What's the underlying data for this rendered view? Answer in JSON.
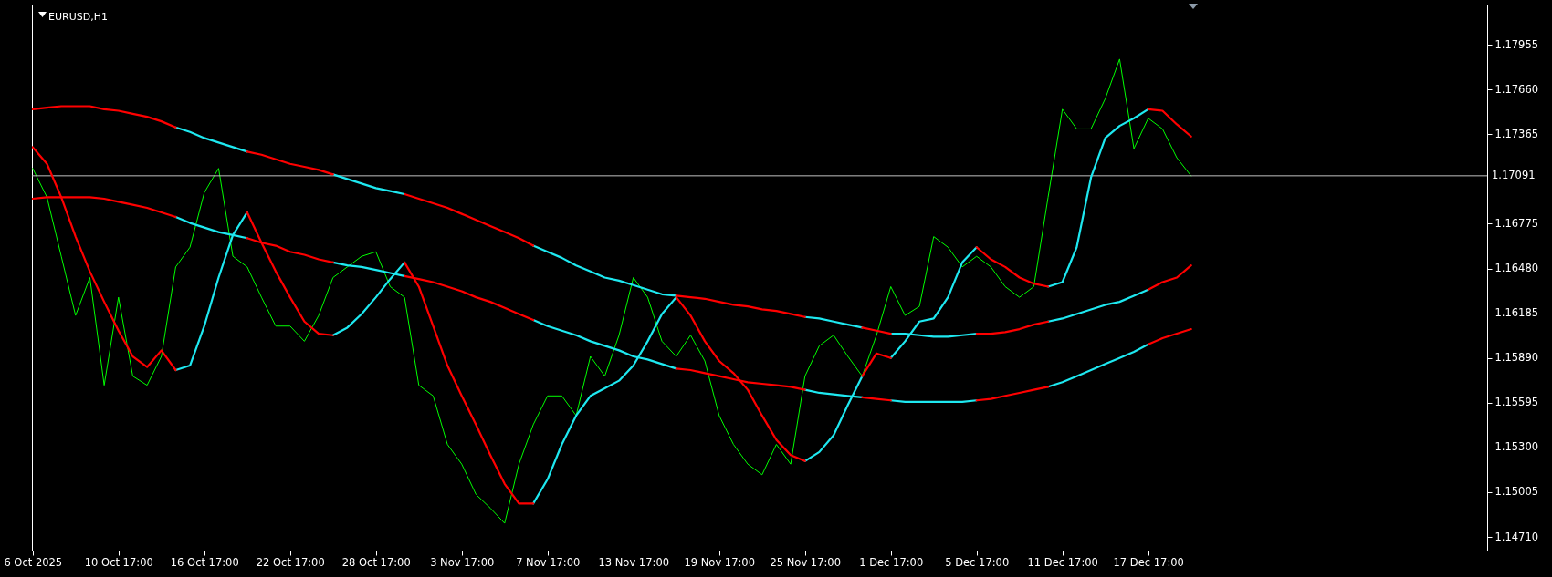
{
  "chart_data": {
    "type": "line",
    "title": "EURUSD,H1",
    "categories": [
      "6 Oct 2025",
      null,
      null,
      null,
      null,
      null,
      "10 Oct 17:00",
      null,
      null,
      null,
      null,
      null,
      "16 Oct 17:00",
      null,
      null,
      null,
      null,
      null,
      "22 Oct 17:00",
      null,
      null,
      null,
      null,
      null,
      "28 Oct 17:00",
      null,
      null,
      null,
      null,
      null,
      "3 Nov 17:00",
      null,
      null,
      null,
      null,
      null,
      "7 Nov 17:00",
      null,
      null,
      null,
      null,
      null,
      "13 Nov 17:00",
      null,
      null,
      null,
      null,
      null,
      "19 Nov 17:00",
      null,
      null,
      null,
      null,
      null,
      "25 Nov 17:00",
      null,
      null,
      null,
      null,
      null,
      "1 Dec 17:00",
      null,
      null,
      null,
      null,
      null,
      "5 Dec 17:00",
      null,
      null,
      null,
      null,
      null,
      "11 Dec 17:00",
      null,
      null,
      null,
      null,
      null,
      "17 Dec 17:00",
      null,
      null,
      null,
      null,
      null,
      null,
      null,
      null,
      null,
      null,
      null,
      null,
      null,
      null,
      null,
      null,
      null,
      null,
      null,
      null,
      null,
      null,
      null,
      null
    ],
    "ylim": [
      1.1462,
      1.1822
    ],
    "yticks": [
      {
        "value": 1.1471,
        "label": "1.14710"
      },
      {
        "value": 1.15005,
        "label": "1.15005"
      },
      {
        "value": 1.153,
        "label": "1.15300"
      },
      {
        "value": 1.15595,
        "label": "1.15595"
      },
      {
        "value": 1.1589,
        "label": "1.15890"
      },
      {
        "value": 1.16185,
        "label": "1.16185"
      },
      {
        "value": 1.1648,
        "label": "1.16480"
      },
      {
        "value": 1.16775,
        "label": "1.16775"
      },
      {
        "value": 1.17365,
        "label": "1.17365"
      },
      {
        "value": 1.1766,
        "label": "1.17660"
      },
      {
        "value": 1.17955,
        "label": "1.17955"
      }
    ],
    "ref_lines": [
      {
        "axis": "y",
        "value": 1.17091,
        "label": "1.17091",
        "color": "#c0c0c0"
      }
    ],
    "series": [
      {
        "color": "#00ff00",
        "values": [
          1.1714,
          1.1695,
          1.1656,
          1.1617,
          1.1642,
          1.1571,
          1.1629,
          1.1577,
          1.1571,
          1.159,
          1.1649,
          1.1662,
          1.1698,
          1.1714,
          1.1656,
          1.1649,
          1.1629,
          1.161,
          1.161,
          1.16,
          1.1617,
          1.1642,
          1.1649,
          1.1656,
          1.1659,
          1.1636,
          1.1629,
          1.1571,
          1.1564,
          1.1532,
          1.1519,
          1.1499,
          1.149,
          1.148,
          1.1519,
          1.1545,
          1.1564,
          1.1564,
          1.1551,
          1.159,
          1.1577,
          1.1604,
          1.1642,
          1.1629,
          1.16,
          1.159,
          1.1604,
          1.1587,
          1.1551,
          1.1532,
          1.1519,
          1.1512,
          1.1532,
          1.1519,
          1.1577,
          1.1597,
          1.1604,
          1.159,
          1.1577,
          1.1604,
          1.1636,
          1.1617,
          1.1623,
          1.1669,
          1.1662,
          1.1649,
          1.1656,
          1.1649,
          1.1636,
          1.1629,
          1.1636,
          1.1695,
          1.1753,
          1.174,
          1.174,
          1.176,
          1.1786,
          1.1727,
          1.1747,
          1.174,
          1.1721,
          1.1709,
          null,
          null,
          null,
          null,
          null,
          null,
          null,
          null,
          null,
          null,
          null,
          null,
          null,
          null,
          null,
          null,
          null,
          null,
          null,
          null,
          null
        ]
      },
      {
        "color": "#1ee8f0",
        "values": [
          null,
          null,
          null,
          null,
          null,
          null,
          null,
          null,
          null,
          null,
          1.1741,
          1.1738,
          1.1734,
          1.1731,
          1.1728,
          1.1725,
          null,
          null,
          null,
          null,
          null,
          1.171,
          1.1707,
          1.1704,
          1.1701,
          1.1699,
          1.1697,
          null,
          null,
          null,
          null,
          null,
          null,
          null,
          null,
          1.1663,
          1.1659,
          1.1655,
          1.165,
          1.1646,
          1.1642,
          1.164,
          1.1637,
          1.1634,
          1.1631,
          1.163,
          null,
          null,
          null,
          null,
          null,
          null,
          null,
          null,
          1.1616,
          1.1615,
          1.1613,
          1.1611,
          1.1609,
          null,
          1.1605,
          1.1605,
          1.1604,
          1.1603,
          1.1603,
          1.1604,
          1.1605,
          null,
          null,
          null,
          null,
          1.1613,
          1.1615,
          1.1618,
          1.1621,
          1.1624,
          1.1626,
          1.163,
          1.1634,
          null,
          null,
          null,
          null,
          null,
          null,
          null,
          null,
          null,
          null,
          null,
          null,
          null,
          null,
          null,
          null,
          null,
          null,
          null,
          null,
          null,
          null,
          null,
          null
        ]
      },
      {
        "color": "#1ee8f0",
        "values": [
          null,
          null,
          null,
          null,
          null,
          null,
          null,
          null,
          null,
          null,
          1.1682,
          1.1678,
          1.1675,
          1.1672,
          1.167,
          1.1668,
          null,
          null,
          null,
          null,
          null,
          1.1652,
          1.165,
          1.1649,
          1.1647,
          1.1645,
          1.1643,
          null,
          null,
          null,
          null,
          null,
          null,
          null,
          null,
          1.1614,
          1.161,
          1.1607,
          1.1604,
          1.16,
          1.1597,
          1.1594,
          1.159,
          1.1588,
          1.1585,
          1.1582,
          null,
          null,
          null,
          null,
          null,
          null,
          null,
          null,
          1.1568,
          1.1566,
          1.1565,
          1.1564,
          1.1563,
          null,
          1.1561,
          1.156,
          1.156,
          1.156,
          1.156,
          1.156,
          1.1561,
          null,
          null,
          null,
          null,
          1.157,
          1.1573,
          1.1577,
          1.1581,
          1.1585,
          1.1589,
          1.1593,
          1.1598,
          null,
          null,
          null,
          null,
          null,
          null,
          null,
          null,
          null,
          null,
          null,
          null,
          null,
          null,
          null,
          null,
          null,
          null,
          null,
          null,
          null,
          null,
          null,
          null
        ]
      },
      {
        "color": "#1ee8f0",
        "values": [
          null,
          null,
          null,
          null,
          null,
          null,
          null,
          null,
          null,
          null,
          1.1581,
          1.1584,
          1.161,
          1.1642,
          1.167,
          1.1685,
          null,
          null,
          null,
          null,
          null,
          1.1604,
          1.1609,
          1.1618,
          1.1629,
          1.1641,
          1.1652,
          null,
          null,
          null,
          null,
          null,
          null,
          null,
          null,
          1.1493,
          1.1509,
          1.1532,
          1.1551,
          1.1564,
          1.1569,
          1.1574,
          1.1584,
          1.16,
          1.1618,
          1.1629,
          null,
          null,
          null,
          null,
          null,
          null,
          null,
          null,
          1.1521,
          1.1527,
          1.1538,
          1.1558,
          1.1577,
          null,
          1.1589,
          1.16,
          1.1613,
          1.1615,
          1.1629,
          1.1652,
          1.1662,
          null,
          null,
          null,
          null,
          1.1636,
          1.1639,
          1.1662,
          1.1708,
          1.1734,
          1.1742,
          1.1747,
          1.1753,
          null,
          null,
          null,
          null,
          null,
          null,
          null,
          null,
          null,
          null,
          null,
          null,
          null,
          null,
          null,
          null,
          null,
          null,
          null,
          null,
          null,
          null,
          null,
          null
        ]
      },
      {
        "color": "#ff0000",
        "values": [
          1.1753,
          1.1754,
          1.1755,
          1.1755,
          1.1755,
          1.1753,
          1.1752,
          1.175,
          1.1748,
          1.1745,
          1.1741,
          null,
          null,
          null,
          null,
          1.1725,
          1.1723,
          1.172,
          1.1717,
          1.1715,
          1.1713,
          1.171,
          null,
          null,
          null,
          null,
          1.1697,
          1.1694,
          1.1691,
          1.1688,
          1.1684,
          1.168,
          1.1676,
          1.1672,
          1.1668,
          1.1663,
          null,
          null,
          null,
          null,
          null,
          null,
          null,
          null,
          null,
          1.163,
          1.1629,
          1.1628,
          1.1626,
          1.1624,
          1.1623,
          1.1621,
          1.162,
          1.1618,
          1.1616,
          null,
          null,
          null,
          1.1609,
          1.1607,
          1.1605,
          null,
          null,
          null,
          null,
          null,
          1.1605,
          1.1605,
          1.1606,
          1.1608,
          1.1611,
          1.1613,
          null,
          null,
          null,
          null,
          null,
          null,
          1.1634,
          1.1639,
          1.1642,
          1.165,
          null,
          null,
          null,
          null,
          null,
          null,
          null,
          null,
          null,
          null,
          null,
          null,
          null,
          null,
          null,
          null,
          null,
          null,
          null,
          null,
          null
        ]
      },
      {
        "color": "#ff0000",
        "values": [
          1.1694,
          1.1695,
          1.1695,
          1.1695,
          1.1695,
          1.1694,
          1.1692,
          1.169,
          1.1688,
          1.1685,
          1.1682,
          null,
          null,
          null,
          null,
          1.1668,
          1.1665,
          1.1663,
          1.1659,
          1.1657,
          1.1654,
          1.1652,
          null,
          null,
          null,
          null,
          1.1643,
          1.1641,
          1.1639,
          1.1636,
          1.1633,
          1.1629,
          1.1626,
          1.1622,
          1.1618,
          1.1614,
          null,
          null,
          null,
          null,
          null,
          null,
          null,
          null,
          null,
          1.1582,
          1.1581,
          1.1579,
          1.1577,
          1.1575,
          1.1573,
          1.1572,
          1.1571,
          1.157,
          1.1568,
          null,
          null,
          null,
          1.1563,
          1.1562,
          1.1561,
          null,
          null,
          null,
          null,
          null,
          1.1561,
          1.1562,
          1.1564,
          1.1566,
          1.1568,
          1.157,
          null,
          null,
          null,
          null,
          null,
          null,
          1.1598,
          1.1602,
          1.1605,
          1.1608,
          null,
          null,
          null,
          null,
          null,
          null,
          null,
          null,
          null,
          null,
          null,
          null,
          null,
          null,
          null,
          null,
          null,
          null,
          null,
          null,
          null
        ]
      },
      {
        "color": "#ff0000",
        "values": [
          1.1728,
          1.1717,
          1.1695,
          1.1669,
          1.1646,
          1.1626,
          1.1607,
          1.159,
          1.1583,
          1.1594,
          1.1581,
          null,
          null,
          null,
          null,
          1.1685,
          1.1665,
          1.1646,
          1.1629,
          1.1613,
          1.1605,
          1.1604,
          null,
          null,
          null,
          null,
          1.1652,
          1.1636,
          1.161,
          1.1584,
          1.1564,
          1.1545,
          1.1525,
          1.1506,
          1.1493,
          1.1493,
          null,
          null,
          null,
          null,
          null,
          null,
          null,
          null,
          null,
          1.1629,
          1.1617,
          1.16,
          1.1587,
          1.1579,
          1.1568,
          1.1551,
          1.1535,
          1.1525,
          1.1521,
          null,
          null,
          null,
          1.1577,
          1.1592,
          1.1589,
          null,
          null,
          null,
          null,
          null,
          1.1662,
          1.1654,
          1.1649,
          1.1642,
          1.1638,
          1.1636,
          null,
          null,
          null,
          null,
          null,
          null,
          1.1753,
          1.1752,
          1.1743,
          1.1735,
          null,
          null,
          null,
          null,
          null,
          null,
          null,
          null,
          null,
          null,
          null,
          null,
          null,
          null,
          null,
          null,
          null,
          null,
          null,
          null,
          null
        ]
      }
    ]
  }
}
